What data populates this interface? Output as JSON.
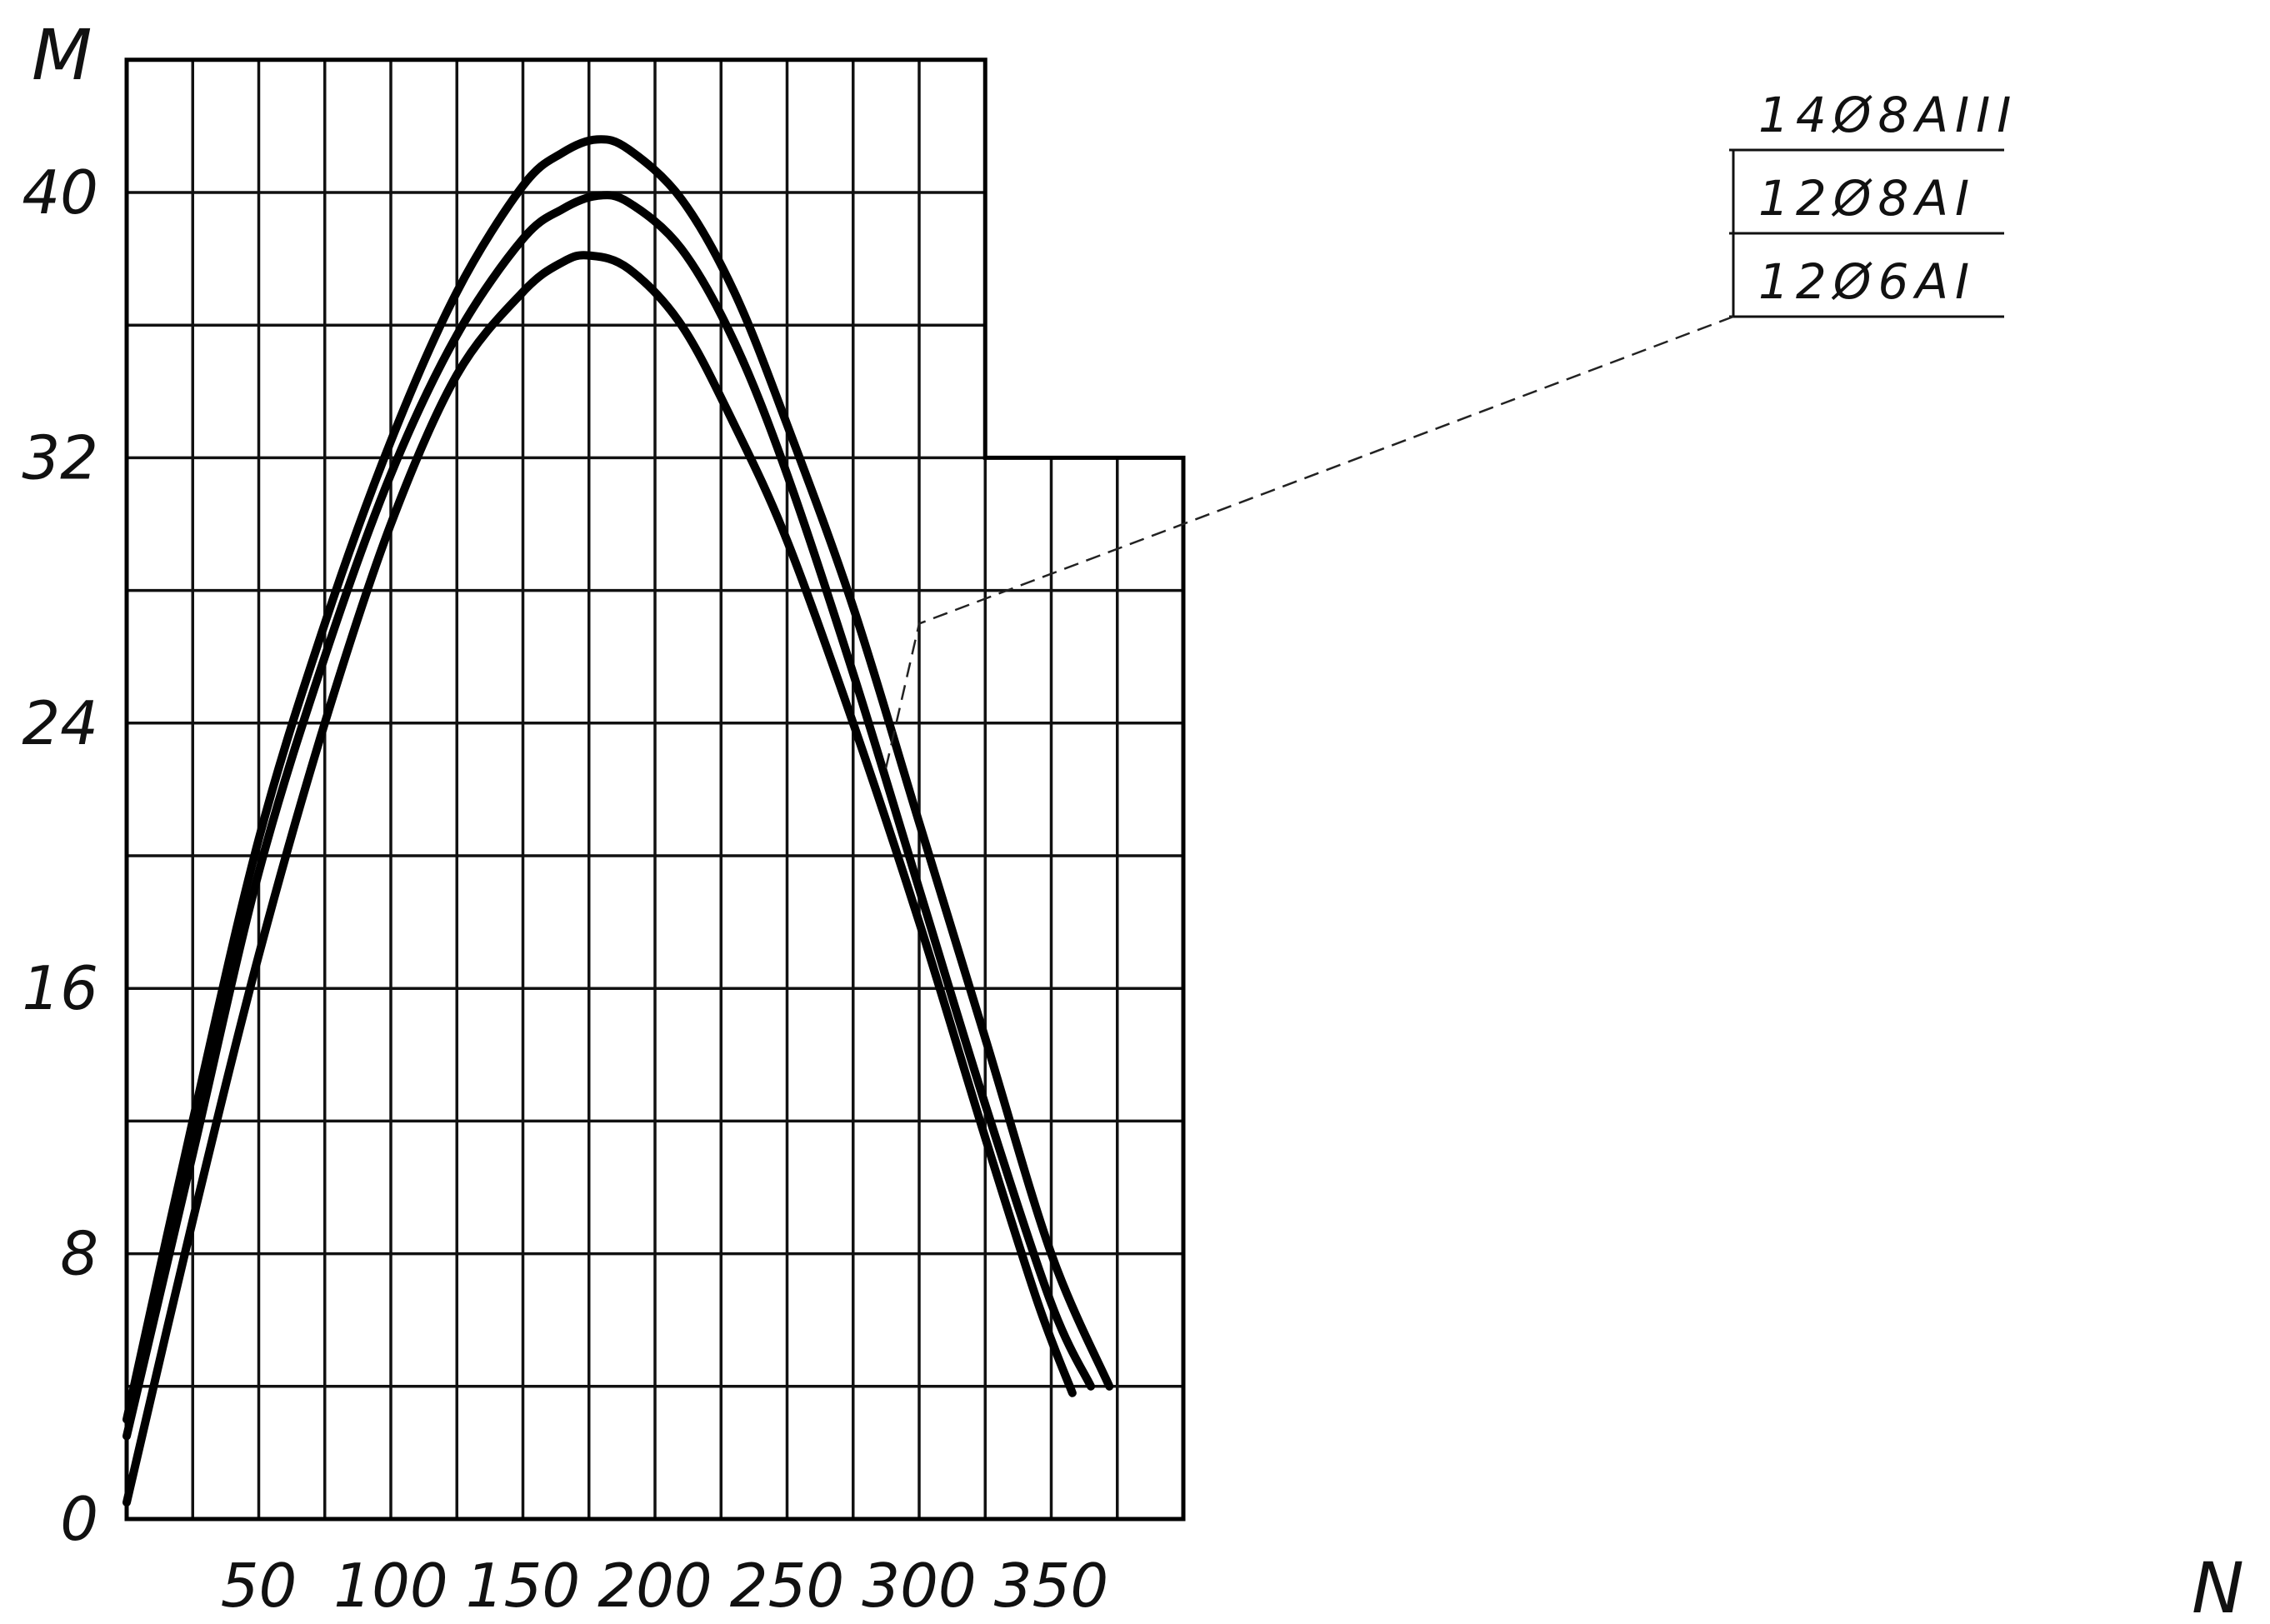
{
  "chart_data": {
    "type": "line",
    "xlabel": "N",
    "ylabel": "M",
    "xlim": [
      0,
      400
    ],
    "ylim": [
      0,
      44
    ],
    "grid": true,
    "legend_position": "top-right",
    "x_ticks": [
      {
        "value": 50,
        "label": "50"
      },
      {
        "value": 100,
        "label": "100"
      },
      {
        "value": 150,
        "label": "150"
      },
      {
        "value": 200,
        "label": "200"
      },
      {
        "value": 250,
        "label": "250"
      },
      {
        "value": 300,
        "label": "300"
      },
      {
        "value": 350,
        "label": "350"
      }
    ],
    "y_ticks": [
      {
        "value": 0,
        "label": "0"
      },
      {
        "value": 8,
        "label": "8"
      },
      {
        "value": 16,
        "label": "16"
      },
      {
        "value": 24,
        "label": "24"
      },
      {
        "value": 32,
        "label": "32"
      },
      {
        "value": 40,
        "label": "40"
      }
    ],
    "series": [
      {
        "name": "14Ø8AIII",
        "x": [
          0,
          25,
          50,
          75,
          100,
          125,
          150,
          165,
          178,
          190,
          210,
          230,
          250,
          275,
          300,
          325,
          350,
          372
        ],
        "y": [
          3.0,
          12.0,
          20.5,
          27.0,
          32.5,
          37.0,
          40.2,
          41.2,
          41.6,
          41.3,
          39.8,
          37.0,
          33.0,
          27.5,
          21.0,
          14.5,
          8.0,
          4.0
        ]
      },
      {
        "name": "12Ø8AI",
        "x": [
          0,
          25,
          50,
          75,
          100,
          125,
          150,
          165,
          178,
          190,
          210,
          230,
          250,
          275,
          300,
          325,
          350,
          365
        ],
        "y": [
          2.5,
          11.0,
          19.5,
          26.0,
          31.5,
          35.7,
          38.6,
          39.5,
          39.9,
          39.7,
          38.3,
          35.5,
          31.5,
          25.5,
          19.0,
          12.5,
          6.5,
          4.0
        ]
      },
      {
        "name": "12Ø6AI",
        "x": [
          0,
          25,
          50,
          75,
          100,
          125,
          150,
          165,
          175,
          190,
          210,
          230,
          250,
          275,
          300,
          325,
          345,
          358
        ],
        "y": [
          0.5,
          9.0,
          17.0,
          24.0,
          30.0,
          34.5,
          37.0,
          37.9,
          38.1,
          37.7,
          36.0,
          33.0,
          29.5,
          24.0,
          18.0,
          11.5,
          6.5,
          3.8
        ]
      }
    ]
  }
}
